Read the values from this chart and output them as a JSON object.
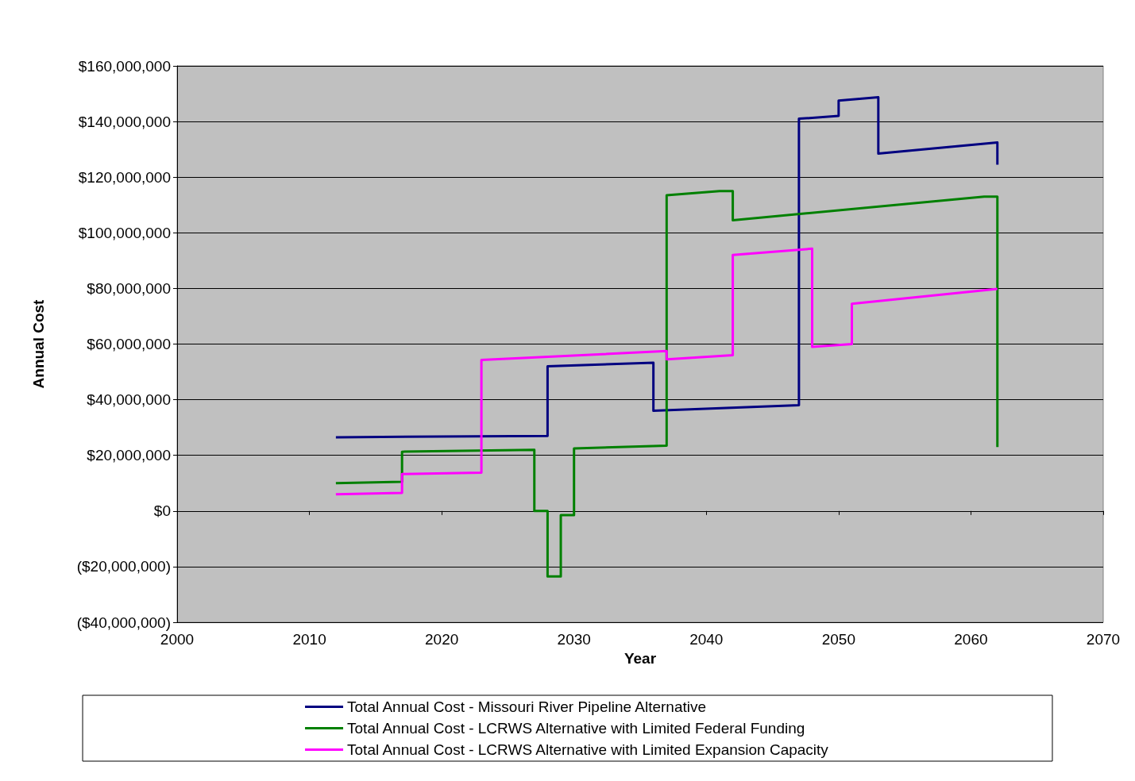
{
  "chart_data": {
    "type": "line",
    "xlabel": "Year",
    "ylabel": "Annual Cost",
    "xlim": [
      2000,
      2070
    ],
    "xticks": [
      2000,
      2010,
      2020,
      2030,
      2040,
      2050,
      2060,
      2070
    ],
    "ylim": [
      -40000000,
      160000000
    ],
    "yticks": [
      {
        "value": -40000000,
        "label": "($40,000,000)"
      },
      {
        "value": -20000000,
        "label": "($20,000,000)"
      },
      {
        "value": 0,
        "label": "$0"
      },
      {
        "value": 20000000,
        "label": "$20,000,000"
      },
      {
        "value": 40000000,
        "label": "$40,000,000"
      },
      {
        "value": 60000000,
        "label": "$60,000,000"
      },
      {
        "value": 80000000,
        "label": "$80,000,000"
      },
      {
        "value": 100000000,
        "label": "$100,000,000"
      },
      {
        "value": 120000000,
        "label": "$120,000,000"
      },
      {
        "value": 140000000,
        "label": "$140,000,000"
      },
      {
        "value": 160000000,
        "label": "$160,000,000"
      }
    ],
    "grid": "y",
    "legend": "bottom",
    "marker": "none",
    "line_style": "solid",
    "series": [
      {
        "name": "Total Annual Cost - Missouri River Pipeline Alternative",
        "color": "#000080",
        "x": [
          2012,
          2028,
          2028,
          2036,
          2036,
          2047,
          2047,
          2050,
          2050,
          2053,
          2053,
          2062,
          2062
        ],
        "values": [
          26500000,
          27000000,
          52000000,
          53300000,
          36000000,
          38000000,
          141000000,
          142000000,
          147500000,
          148700000,
          128500000,
          132500000,
          124500000
        ]
      },
      {
        "name": "Total Annual Cost - LCRWS Alternative with Limited Federal Funding",
        "color": "#008000",
        "x": [
          2012,
          2017,
          2017,
          2027,
          2027,
          2028,
          2028,
          2029,
          2029,
          2030,
          2030,
          2037,
          2037,
          2041,
          2042,
          2042,
          2061,
          2062,
          2062
        ],
        "values": [
          10000000,
          10500000,
          21300000,
          22000000,
          0,
          0,
          -23500000,
          -23500000,
          -1500000,
          -1500000,
          22500000,
          23500000,
          113500000,
          115000000,
          115000000,
          104500000,
          113000000,
          113000000,
          23000000
        ]
      },
      {
        "name": "Total Annual Cost - LCRWS Alternative with Limited Expansion Capacity",
        "color": "#ff00ff",
        "x": [
          2012,
          2017,
          2017,
          2023,
          2023,
          2037,
          2037,
          2042,
          2042,
          2048,
          2048,
          2051,
          2051,
          2062
        ],
        "values": [
          6000000,
          6500000,
          13300000,
          13800000,
          54300000,
          57500000,
          54500000,
          56000000,
          92000000,
          94300000,
          59000000,
          60000000,
          74500000,
          79800000
        ]
      }
    ]
  }
}
